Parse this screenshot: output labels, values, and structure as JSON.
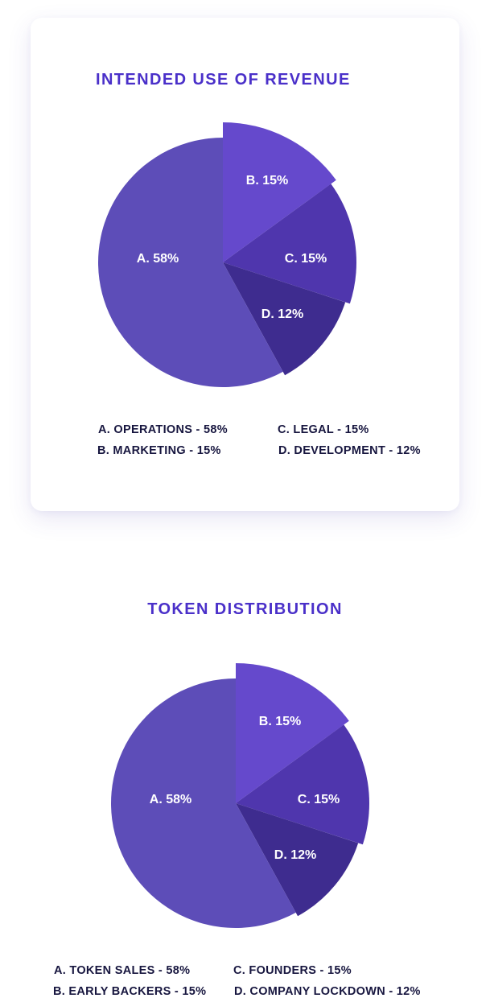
{
  "chart_data": [
    {
      "type": "pie",
      "title": "INTENDED USE OF REVENUE",
      "slices": [
        {
          "id": "A",
          "label": "A. 58%",
          "value": 58,
          "color": "#5d4db8"
        },
        {
          "id": "B",
          "label": "B. 15%",
          "value": 15,
          "color": "#6549cc"
        },
        {
          "id": "C",
          "label": "C. 15%",
          "value": 15,
          "color": "#4f36ad"
        },
        {
          "id": "D",
          "label": "D. 12%",
          "value": 12,
          "color": "#3e2c8f"
        }
      ],
      "legend": [
        "A.  OPERATIONS - 58%",
        "C.  LEGAL - 15%",
        "B.  MARKETING - 15%",
        "D.  DEVELOPMENT - 12%"
      ]
    },
    {
      "type": "pie",
      "title": "TOKEN DISTRIBUTION",
      "slices": [
        {
          "id": "A",
          "label": "A. 58%",
          "value": 58,
          "color": "#5d4db8"
        },
        {
          "id": "B",
          "label": "B. 15%",
          "value": 15,
          "color": "#6549cc"
        },
        {
          "id": "C",
          "label": "C. 15%",
          "value": 15,
          "color": "#4f36ad"
        },
        {
          "id": "D",
          "label": "D. 12%",
          "value": 12,
          "color": "#3e2c8f"
        }
      ],
      "legend": [
        "A.  TOKEN SALES - 58%",
        "C.  FOUNDERS - 15%",
        "B.  EARLY BACKERS - 15%",
        "D.  COMPANY LOCKDOWN - 12%"
      ]
    }
  ]
}
